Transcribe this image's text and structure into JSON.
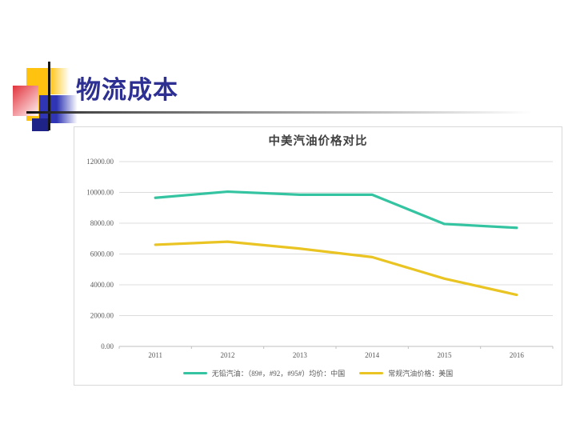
{
  "slide": {
    "title": "物流成本"
  },
  "colors": {
    "title": "#2D2F92",
    "china_line": "#35C4A1",
    "us_line": "#E9C422",
    "gridline": "#DCDCDC",
    "axis_line": "#BFBFBF",
    "axis_text": "#595959",
    "chart_title_text": "#404040"
  },
  "chart_data": {
    "type": "line",
    "title": "中美汽油价格对比",
    "categories": [
      "2011",
      "2012",
      "2013",
      "2014",
      "2015",
      "2016"
    ],
    "series": [
      {
        "name": "无铅汽油：（89#，#92，#95#）均价：中国",
        "color": "#35C4A1",
        "values": [
          9650,
          10050,
          9850,
          9850,
          7950,
          7700
        ]
      },
      {
        "name": "常规汽油价格：美国",
        "color": "#E9C422",
        "values": [
          6600,
          6800,
          6350,
          5800,
          4400,
          3350
        ]
      }
    ],
    "ylim": [
      0,
      12000
    ],
    "ytick_step": 2000,
    "ytick_labels": [
      "0.00",
      "2000.00",
      "4000.00",
      "6000.00",
      "8000.00",
      "10000.00",
      "12000.00"
    ],
    "grid": true,
    "legend_position": "bottom"
  }
}
